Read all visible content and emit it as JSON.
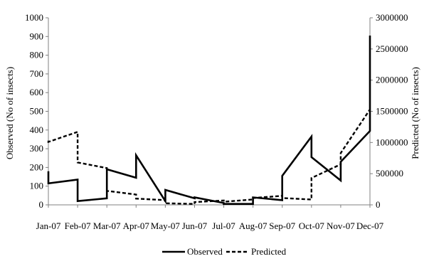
{
  "chart_data": {
    "type": "line",
    "title": "",
    "categories": [
      "Jan-07",
      "Feb-07",
      "Mar-07",
      "Apr-07",
      "May-07",
      "Jun-07",
      "Jul-07",
      "Aug-07",
      "Sep-07",
      "Oct-07",
      "Nov-07",
      "Dec-07"
    ],
    "left_axis": {
      "label": "Observed (No of insects)",
      "range": [
        0,
        1000
      ],
      "ticks": [
        "0",
        "100",
        "200",
        "300",
        "400",
        "500",
        "600",
        "700",
        "800",
        "900",
        "1000"
      ]
    },
    "right_axis": {
      "label": "Predicted (No of insects)",
      "range": [
        0,
        3000000
      ],
      "ticks": [
        "0",
        "500000",
        "1000000",
        "1500000",
        "2000000",
        "2500000",
        "3000000"
      ]
    },
    "grid": false,
    "legend_position": "bottom",
    "series": [
      {
        "name": "Observed",
        "axis": "left",
        "style": "solid",
        "x": [
          0,
          0,
          1,
          1,
          2,
          2,
          3,
          3,
          4,
          4,
          5,
          5,
          6,
          6,
          7,
          7,
          8,
          8,
          9,
          9,
          10,
          10,
          11,
          11
        ],
        "y": [
          180,
          115,
          135,
          20,
          35,
          190,
          145,
          265,
          20,
          80,
          35,
          40,
          10,
          5,
          5,
          40,
          25,
          155,
          365,
          255,
          130,
          230,
          395,
          905
        ]
      },
      {
        "name": "Predicted",
        "axis": "right",
        "style": "dashed",
        "x": [
          0,
          0,
          1,
          1,
          2,
          2,
          3,
          3,
          4,
          4,
          5,
          5,
          6,
          6,
          7,
          7,
          8,
          8,
          9,
          9,
          10,
          10,
          11
        ],
        "y": [
          1030000,
          1010000,
          1170000,
          680000,
          590000,
          225000,
          165000,
          100000,
          75000,
          25000,
          15000,
          45000,
          70000,
          50000,
          85000,
          110000,
          145000,
          110000,
          85000,
          430000,
          650000,
          830000,
          1530000
        ]
      }
    ]
  }
}
